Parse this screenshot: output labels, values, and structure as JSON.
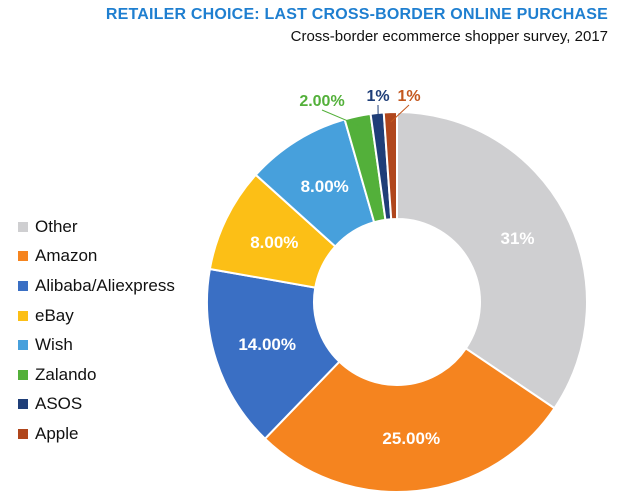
{
  "chart_data": {
    "type": "pie",
    "donut": true,
    "title": "RETAILER CHOICE: LAST CROSS-BORDER ONLINE PURCHASE",
    "subtitle": "Cross-border ecommerce shopper survey, 2017",
    "legend_position": "left",
    "slices": [
      {
        "name": "Other",
        "value": 31,
        "label": "31%",
        "color": "#cfcfd1",
        "label_color": "#ffffff"
      },
      {
        "name": "Amazon",
        "value": 25,
        "label": "25.00%",
        "color": "#f5841f",
        "label_color": "#ffffff"
      },
      {
        "name": "Alibaba/Aliexpress",
        "value": 14,
        "label": "14.00%",
        "color": "#3a6fc4",
        "label_color": "#ffffff"
      },
      {
        "name": "eBay",
        "value": 8,
        "label": "8.00%",
        "color": "#fcbf16",
        "label_color": "#ffffff"
      },
      {
        "name": "Wish",
        "value": 8,
        "label": "8.00%",
        "color": "#47a0dc",
        "label_color": "#ffffff"
      },
      {
        "name": "Zalando",
        "value": 2,
        "label": "2.00%",
        "color": "#53b03a",
        "label_color": "#53b03a"
      },
      {
        "name": "ASOS",
        "value": 1,
        "label": "1%",
        "color": "#1f3e78",
        "label_color": "#1f3e78"
      },
      {
        "name": "Apple",
        "value": 1,
        "label": "1%",
        "color": "#b0461c",
        "label_color": "#c4581f"
      }
    ]
  }
}
